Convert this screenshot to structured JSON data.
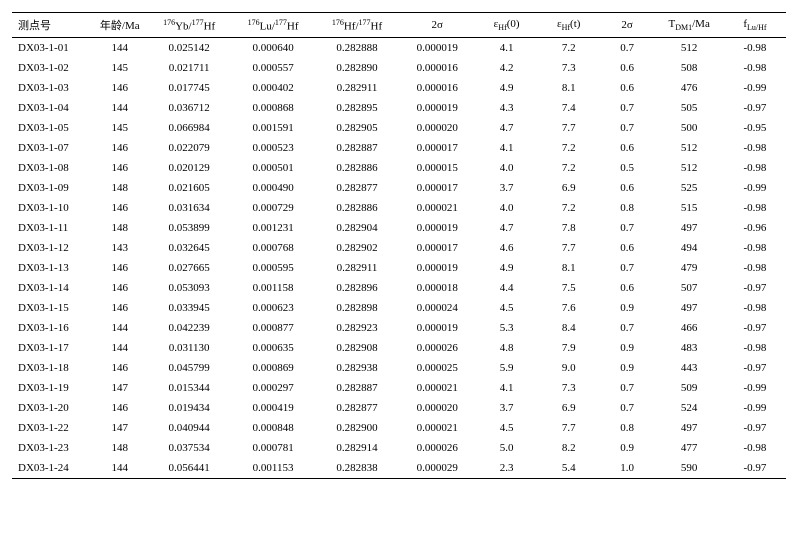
{
  "table": {
    "columns": [
      "测点号",
      "年龄/Ma",
      "<sup>176</sup>Yb/<sup>177</sup>Hf",
      "<sup>176</sup>Lu/<sup>177</sup>Hf",
      "<sup>176</sup>Hf/<sup>177</sup>Hf",
      "2σ",
      "ε<sub>Hf</sub>(0)",
      "ε<sub>Hf</sub>(t)",
      "2σ",
      "T<sub>DM1</sub>/Ma",
      "f<sub>Lu/Hf</sub>"
    ],
    "rows": [
      [
        "DX03-1-01",
        "144",
        "0.025142",
        "0.000640",
        "0.282888",
        "0.000019",
        "4.1",
        "7.2",
        "0.7",
        "512",
        "-0.98"
      ],
      [
        "DX03-1-02",
        "145",
        "0.021711",
        "0.000557",
        "0.282890",
        "0.000016",
        "4.2",
        "7.3",
        "0.6",
        "508",
        "-0.98"
      ],
      [
        "DX03-1-03",
        "146",
        "0.017745",
        "0.000402",
        "0.282911",
        "0.000016",
        "4.9",
        "8.1",
        "0.6",
        "476",
        "-0.99"
      ],
      [
        "DX03-1-04",
        "144",
        "0.036712",
        "0.000868",
        "0.282895",
        "0.000019",
        "4.3",
        "7.4",
        "0.7",
        "505",
        "-0.97"
      ],
      [
        "DX03-1-05",
        "145",
        "0.066984",
        "0.001591",
        "0.282905",
        "0.000020",
        "4.7",
        "7.7",
        "0.7",
        "500",
        "-0.95"
      ],
      [
        "DX03-1-07",
        "146",
        "0.022079",
        "0.000523",
        "0.282887",
        "0.000017",
        "4.1",
        "7.2",
        "0.6",
        "512",
        "-0.98"
      ],
      [
        "DX03-1-08",
        "146",
        "0.020129",
        "0.000501",
        "0.282886",
        "0.000015",
        "4.0",
        "7.2",
        "0.5",
        "512",
        "-0.98"
      ],
      [
        "DX03-1-09",
        "148",
        "0.021605",
        "0.000490",
        "0.282877",
        "0.000017",
        "3.7",
        "6.9",
        "0.6",
        "525",
        "-0.99"
      ],
      [
        "DX03-1-10",
        "146",
        "0.031634",
        "0.000729",
        "0.282886",
        "0.000021",
        "4.0",
        "7.2",
        "0.8",
        "515",
        "-0.98"
      ],
      [
        "DX03-1-11",
        "148",
        "0.053899",
        "0.001231",
        "0.282904",
        "0.000019",
        "4.7",
        "7.8",
        "0.7",
        "497",
        "-0.96"
      ],
      [
        "DX03-1-12",
        "143",
        "0.032645",
        "0.000768",
        "0.282902",
        "0.000017",
        "4.6",
        "7.7",
        "0.6",
        "494",
        "-0.98"
      ],
      [
        "DX03-1-13",
        "146",
        "0.027665",
        "0.000595",
        "0.282911",
        "0.000019",
        "4.9",
        "8.1",
        "0.7",
        "479",
        "-0.98"
      ],
      [
        "DX03-1-14",
        "146",
        "0.053093",
        "0.001158",
        "0.282896",
        "0.000018",
        "4.4",
        "7.5",
        "0.6",
        "507",
        "-0.97"
      ],
      [
        "DX03-1-15",
        "146",
        "0.033945",
        "0.000623",
        "0.282898",
        "0.000024",
        "4.5",
        "7.6",
        "0.9",
        "497",
        "-0.98"
      ],
      [
        "DX03-1-16",
        "144",
        "0.042239",
        "0.000877",
        "0.282923",
        "0.000019",
        "5.3",
        "8.4",
        "0.7",
        "466",
        "-0.97"
      ],
      [
        "DX03-1-17",
        "144",
        "0.031130",
        "0.000635",
        "0.282908",
        "0.000026",
        "4.8",
        "7.9",
        "0.9",
        "483",
        "-0.98"
      ],
      [
        "DX03-1-18",
        "146",
        "0.045799",
        "0.000869",
        "0.282938",
        "0.000025",
        "5.9",
        "9.0",
        "0.9",
        "443",
        "-0.97"
      ],
      [
        "DX03-1-19",
        "147",
        "0.015344",
        "0.000297",
        "0.282887",
        "0.000021",
        "4.1",
        "7.3",
        "0.7",
        "509",
        "-0.99"
      ],
      [
        "DX03-1-20",
        "146",
        "0.019434",
        "0.000419",
        "0.282877",
        "0.000020",
        "3.7",
        "6.9",
        "0.7",
        "524",
        "-0.99"
      ],
      [
        "DX03-1-22",
        "147",
        "0.040944",
        "0.000848",
        "0.282900",
        "0.000021",
        "4.5",
        "7.7",
        "0.8",
        "497",
        "-0.97"
      ],
      [
        "DX03-1-23",
        "148",
        "0.037534",
        "0.000781",
        "0.282914",
        "0.000026",
        "5.0",
        "8.2",
        "0.9",
        "477",
        "-0.98"
      ],
      [
        "DX03-1-24",
        "144",
        "0.056441",
        "0.001153",
        "0.282838",
        "0.000029",
        "2.3",
        "5.4",
        "1.0",
        "590",
        "-0.97"
      ]
    ],
    "col_classes": [
      "col0",
      "col1",
      "col2",
      "col3",
      "col4",
      "col5",
      "col6",
      "col7",
      "col8",
      "col9",
      "col10"
    ],
    "font_size": 11,
    "border_color": "#000000",
    "background_color": "#ffffff"
  }
}
